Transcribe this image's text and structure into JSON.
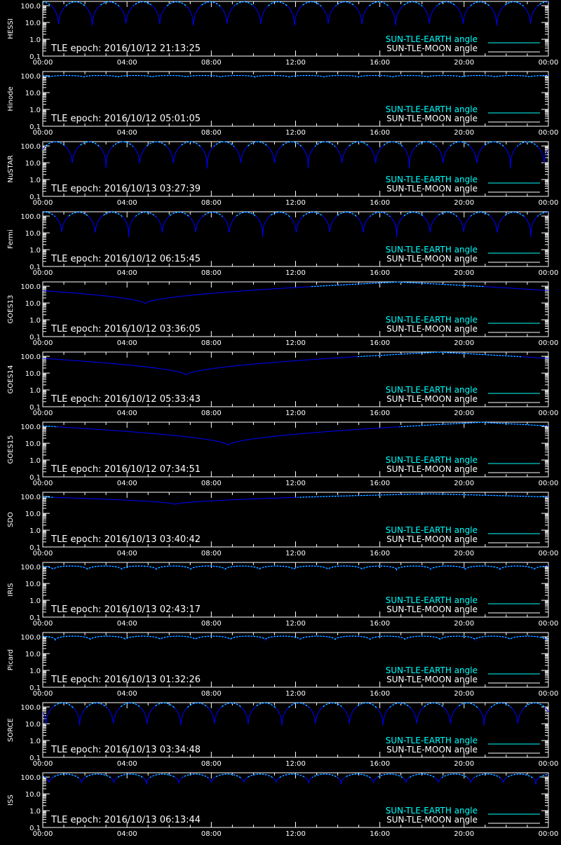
{
  "colors": {
    "background": "#000000",
    "axis": "#ffffff",
    "earth_angle": "#00ffff",
    "earth_angle_dim": "#0000ff",
    "moon_angle": "#ffffff"
  },
  "legend": {
    "earth": "SUN-TLE-EARTH angle",
    "moon": "SUN-TLE-MOON angle"
  },
  "chart_data": [
    {
      "type": "line",
      "panel": "HESSI",
      "epoch_text": "TLE epoch: 2016/10/12 21:13:25",
      "x_ticks": [
        "00:00",
        "04:00",
        "08:00",
        "12:00",
        "16:00",
        "20:00",
        "00:00"
      ],
      "y_ticks": [
        "100.0",
        "10.0",
        "1.0",
        "0.1"
      ],
      "y_scale": "log",
      "ylim": [
        0.1,
        180
      ],
      "x_range_hours": [
        0,
        24
      ],
      "series": [
        {
          "key": "earth",
          "pattern": "periodic",
          "period_hours": 1.6,
          "max": 170,
          "min": 4.0,
          "phase_hours": 0.75
        }
      ]
    },
    {
      "type": "line",
      "panel": "Hinode",
      "epoch_text": "TLE epoch: 2016/10/12 05:01:05",
      "x_ticks": [
        "00:00",
        "04:00",
        "08:00",
        "12:00",
        "16:00",
        "20:00",
        "00:00"
      ],
      "y_ticks": [
        "100.0",
        "10.0",
        "1.0",
        "0.1"
      ],
      "y_scale": "log",
      "ylim": [
        0.1,
        180
      ],
      "x_range_hours": [
        0,
        24
      ],
      "series": [
        {
          "key": "earth",
          "pattern": "periodic",
          "period_hours": 1.63,
          "max": 105,
          "min": 80,
          "phase_hours": 0.3
        }
      ]
    },
    {
      "type": "line",
      "panel": "NuSTAR",
      "epoch_text": "TLE epoch: 2016/10/13 03:27:39",
      "x_ticks": [
        "00:00",
        "04:00",
        "08:00",
        "12:00",
        "16:00",
        "20:00",
        "00:00"
      ],
      "y_ticks": [
        "100.0",
        "10.0",
        "1.0",
        "0.1"
      ],
      "y_scale": "log",
      "ylim": [
        0.1,
        180
      ],
      "x_range_hours": [
        0,
        24
      ],
      "series": [
        {
          "key": "earth",
          "pattern": "periodic",
          "period_hours": 1.6,
          "max": 175,
          "min": 4.5,
          "phase_hours": 1.4
        }
      ]
    },
    {
      "type": "line",
      "panel": "Fermi",
      "epoch_text": "TLE epoch: 2016/10/12 06:15:45",
      "x_ticks": [
        "00:00",
        "04:00",
        "08:00",
        "12:00",
        "16:00",
        "20:00",
        "00:00"
      ],
      "y_ticks": [
        "100.0",
        "10.0",
        "1.0",
        "0.1"
      ],
      "y_scale": "log",
      "ylim": [
        0.1,
        180
      ],
      "x_range_hours": [
        0,
        24
      ],
      "series": [
        {
          "key": "earth",
          "pattern": "periodic",
          "period_hours": 1.59,
          "max": 170,
          "min": 5.5,
          "phase_hours": 0.9
        }
      ]
    },
    {
      "type": "line",
      "panel": "GOES13",
      "epoch_text": "TLE epoch: 2016/10/12 03:36:05",
      "x_ticks": [
        "00:00",
        "04:00",
        "08:00",
        "12:00",
        "16:00",
        "20:00",
        "00:00"
      ],
      "y_ticks": [
        "100.0",
        "10.0",
        "1.0",
        "0.1"
      ],
      "y_scale": "log",
      "ylim": [
        0.1,
        180
      ],
      "x_range_hours": [
        0,
        24
      ],
      "series": [
        {
          "key": "earth",
          "pattern": "daily",
          "x_min_hours": 4.85,
          "min": 9.0,
          "max": 175
        }
      ]
    },
    {
      "type": "line",
      "panel": "GOES14",
      "epoch_text": "TLE epoch: 2016/10/12 05:33:43",
      "x_ticks": [
        "00:00",
        "04:00",
        "08:00",
        "12:00",
        "16:00",
        "20:00",
        "00:00"
      ],
      "y_ticks": [
        "100.0",
        "10.0",
        "1.0",
        "0.1"
      ],
      "y_scale": "log",
      "ylim": [
        0.1,
        180
      ],
      "x_range_hours": [
        0,
        24
      ],
      "series": [
        {
          "key": "earth",
          "pattern": "daily",
          "x_min_hours": 6.8,
          "min": 7.5,
          "max": 175
        }
      ]
    },
    {
      "type": "line",
      "panel": "GOES15",
      "epoch_text": "TLE epoch: 2016/10/12 07:34:51",
      "x_ticks": [
        "00:00",
        "04:00",
        "08:00",
        "12:00",
        "16:00",
        "20:00",
        "00:00"
      ],
      "y_ticks": [
        "100.0",
        "10.0",
        "1.0",
        "0.1"
      ],
      "y_scale": "log",
      "ylim": [
        0.1,
        180
      ],
      "x_range_hours": [
        0,
        24
      ],
      "series": [
        {
          "key": "earth",
          "pattern": "daily",
          "x_min_hours": 8.8,
          "min": 7.5,
          "max": 175
        }
      ]
    },
    {
      "type": "line",
      "panel": "SDO",
      "epoch_text": "TLE epoch: 2016/10/13 03:40:42",
      "x_ticks": [
        "00:00",
        "04:00",
        "08:00",
        "12:00",
        "16:00",
        "20:00",
        "00:00"
      ],
      "y_ticks": [
        "100.0",
        "10.0",
        "1.0",
        "0.1"
      ],
      "y_scale": "log",
      "ylim": [
        0.1,
        180
      ],
      "x_range_hours": [
        0,
        24
      ],
      "series": [
        {
          "key": "earth",
          "pattern": "daily",
          "x_min_hours": 6.3,
          "min": 34,
          "max": 145
        }
      ]
    },
    {
      "type": "line",
      "panel": "IRIS",
      "epoch_text": "TLE epoch: 2016/10/13 02:43:17",
      "x_ticks": [
        "00:00",
        "04:00",
        "08:00",
        "12:00",
        "16:00",
        "20:00",
        "00:00"
      ],
      "y_ticks": [
        "100.0",
        "10.0",
        "1.0",
        "0.1"
      ],
      "y_scale": "log",
      "ylim": [
        0.1,
        180
      ],
      "x_range_hours": [
        0,
        24
      ],
      "series": [
        {
          "key": "earth",
          "pattern": "periodic",
          "period_hours": 1.63,
          "max": 110,
          "min": 62,
          "phase_hours": 0.5
        }
      ]
    },
    {
      "type": "line",
      "panel": "Picard",
      "epoch_text": "TLE epoch: 2016/10/13 01:32:26",
      "x_ticks": [
        "00:00",
        "04:00",
        "08:00",
        "12:00",
        "16:00",
        "20:00",
        "00:00"
      ],
      "y_ticks": [
        "100.0",
        "10.0",
        "1.0",
        "0.1"
      ],
      "y_scale": "log",
      "ylim": [
        0.1,
        180
      ],
      "x_range_hours": [
        0,
        24
      ],
      "series": [
        {
          "key": "earth",
          "pattern": "periodic",
          "period_hours": 1.66,
          "max": 110,
          "min": 62,
          "phase_hours": 0.6
        }
      ]
    },
    {
      "type": "line",
      "panel": "SORCE",
      "epoch_text": "TLE epoch: 2016/10/13 03:34:48",
      "x_ticks": [
        "00:00",
        "04:00",
        "08:00",
        "12:00",
        "16:00",
        "20:00",
        "00:00"
      ],
      "y_ticks": [
        "100.0",
        "10.0",
        "1.0",
        "0.1"
      ],
      "y_scale": "log",
      "ylim": [
        0.1,
        180
      ],
      "x_range_hours": [
        0,
        24
      ],
      "series": [
        {
          "key": "earth",
          "pattern": "periodic",
          "period_hours": 1.6,
          "max": 172,
          "min": 5.0,
          "phase_hours": 1.75
        }
      ]
    },
    {
      "type": "line",
      "panel": "ISS",
      "epoch_text": "TLE epoch: 2016/10/13 06:13:44",
      "x_ticks": [
        "00:00",
        "04:00",
        "08:00",
        "12:00",
        "16:00",
        "20:00",
        "00:00"
      ],
      "y_ticks": [
        "100.0",
        "10.0",
        "1.0",
        "0.1"
      ],
      "y_scale": "log",
      "ylim": [
        0.1,
        180
      ],
      "x_range_hours": [
        0,
        24
      ],
      "series": [
        {
          "key": "earth",
          "pattern": "periodic",
          "period_hours": 1.54,
          "max": 150,
          "min": 35,
          "phase_hours": 0.3
        }
      ]
    }
  ]
}
